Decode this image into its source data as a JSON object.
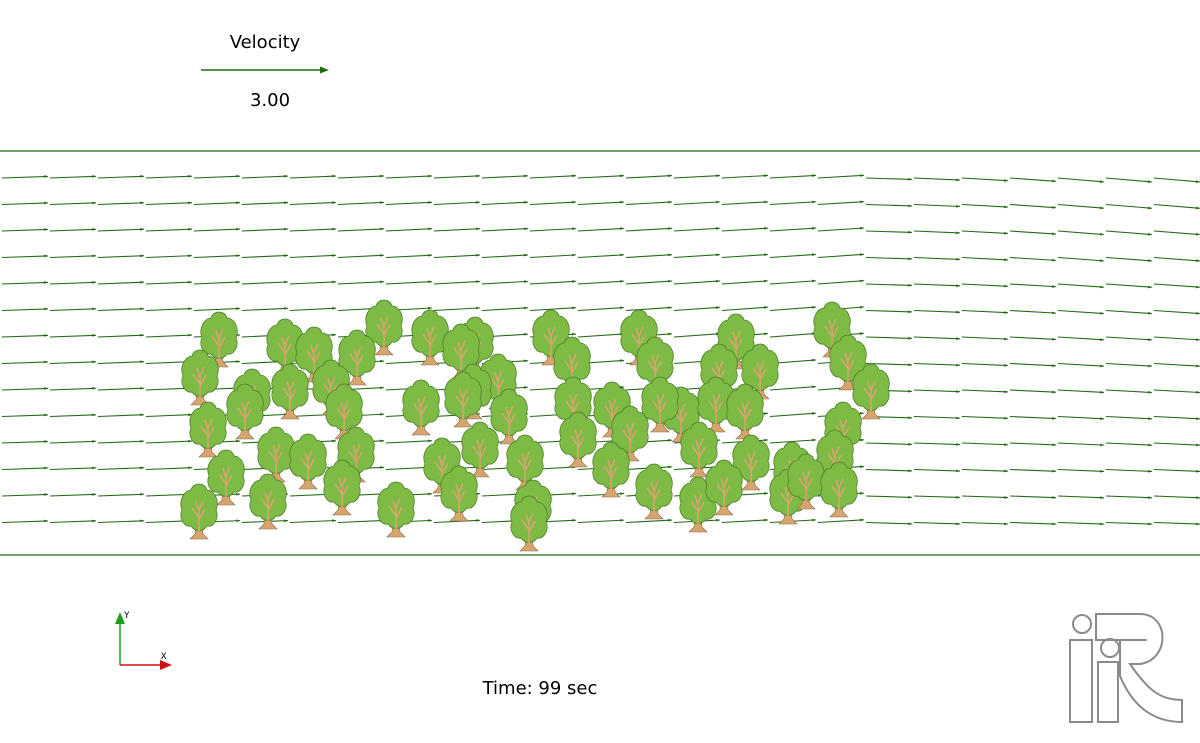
{
  "legend": {
    "title": "Velocity",
    "value": "3.00",
    "arrow_color": "#1f6b12"
  },
  "time": {
    "label": "Time: 99 sec"
  },
  "orientation_axes": {
    "x_label": "X",
    "y_label": "Y",
    "x_color": "#d01010",
    "y_color": "#18a018"
  },
  "logo": {
    "text": "iRIC",
    "icon": "iric-logo-icon"
  },
  "colors": {
    "vector": "#1f6b12",
    "tree_canopy": "#7dbb45",
    "tree_canopy_edge": "#4e7f2a",
    "tree_trunk": "#d6a56f",
    "background": "#ffffff"
  }
}
